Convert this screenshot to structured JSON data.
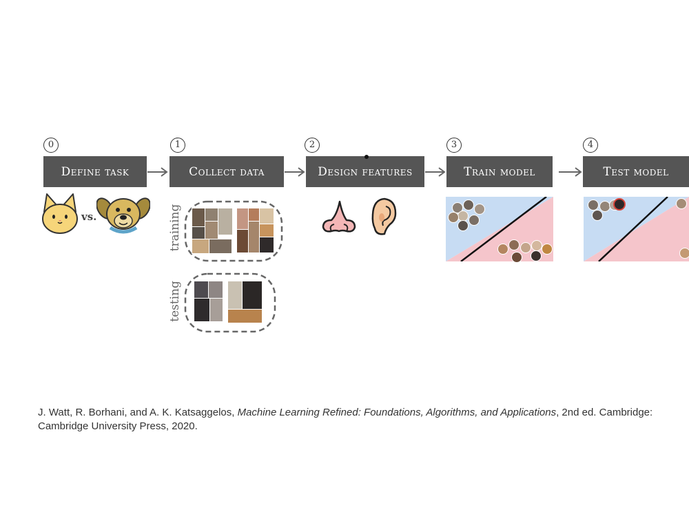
{
  "steps": [
    {
      "num": "0",
      "label": "Define task"
    },
    {
      "num": "1",
      "label": "Collect data"
    },
    {
      "num": "2",
      "label": "Design features"
    },
    {
      "num": "3",
      "label": "Train model"
    },
    {
      "num": "4",
      "label": "Test model"
    }
  ],
  "task": {
    "vs_label": "vs."
  },
  "data_sets": {
    "training_label": "training",
    "testing_label": "testing"
  },
  "citation": {
    "authors": "J. Watt, R. Borhani, and A. K. Katsaggelos, ",
    "title": "Machine Learning Refined: Foundations, Algorithms, and Applications",
    "rest": ", 2nd ed. Cambridge: Cambridge University Press, 2020."
  },
  "colors": {
    "box": "#555555",
    "region_cat": "#c7dcf3",
    "region_dog": "#f5c5cb",
    "arrow": "#666666"
  }
}
